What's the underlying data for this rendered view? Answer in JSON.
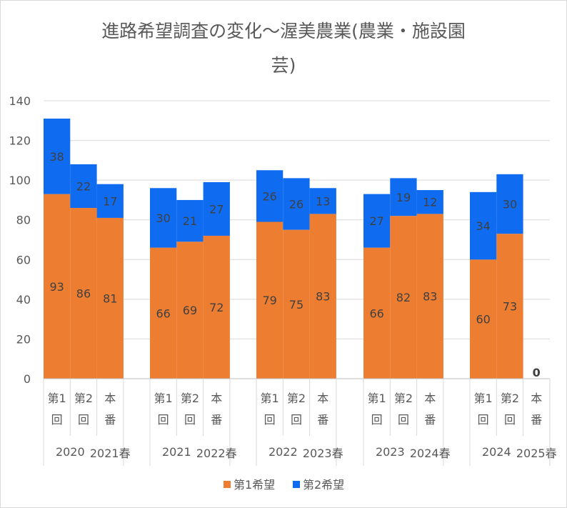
{
  "chart_data": {
    "type": "bar",
    "stacked": true,
    "title_line1": "進路希望調査の変化～渥美農業(農業・施設園",
    "title_line2": "芸)",
    "ylim": [
      0,
      140
    ],
    "yticks": [
      0,
      20,
      40,
      60,
      80,
      100,
      120,
      140
    ],
    "gridlines": true,
    "legend_position": "bottom",
    "colors": {
      "first": "#ED7D31",
      "second": "#0F6BF0"
    },
    "groups": [
      {
        "year": "2020",
        "season": "2021春"
      },
      {
        "year": "2021",
        "season": "2022春"
      },
      {
        "year": "2022",
        "season": "2023春"
      },
      {
        "year": "2023",
        "season": "2024春"
      },
      {
        "year": "2024",
        "season": "2025春"
      }
    ],
    "category_labels": [
      {
        "top": "第1",
        "bottom": "回"
      },
      {
        "top": "第2",
        "bottom": "回"
      },
      {
        "top": "本",
        "bottom": "番"
      }
    ],
    "series": [
      {
        "name": "第1希望",
        "values": [
          93,
          86,
          81,
          66,
          69,
          72,
          79,
          75,
          83,
          66,
          82,
          83,
          60,
          73,
          0
        ]
      },
      {
        "name": "第2希望",
        "values": [
          38,
          22,
          17,
          30,
          21,
          27,
          26,
          26,
          13,
          27,
          19,
          12,
          34,
          30,
          0
        ]
      }
    ],
    "extra_label": "0"
  }
}
